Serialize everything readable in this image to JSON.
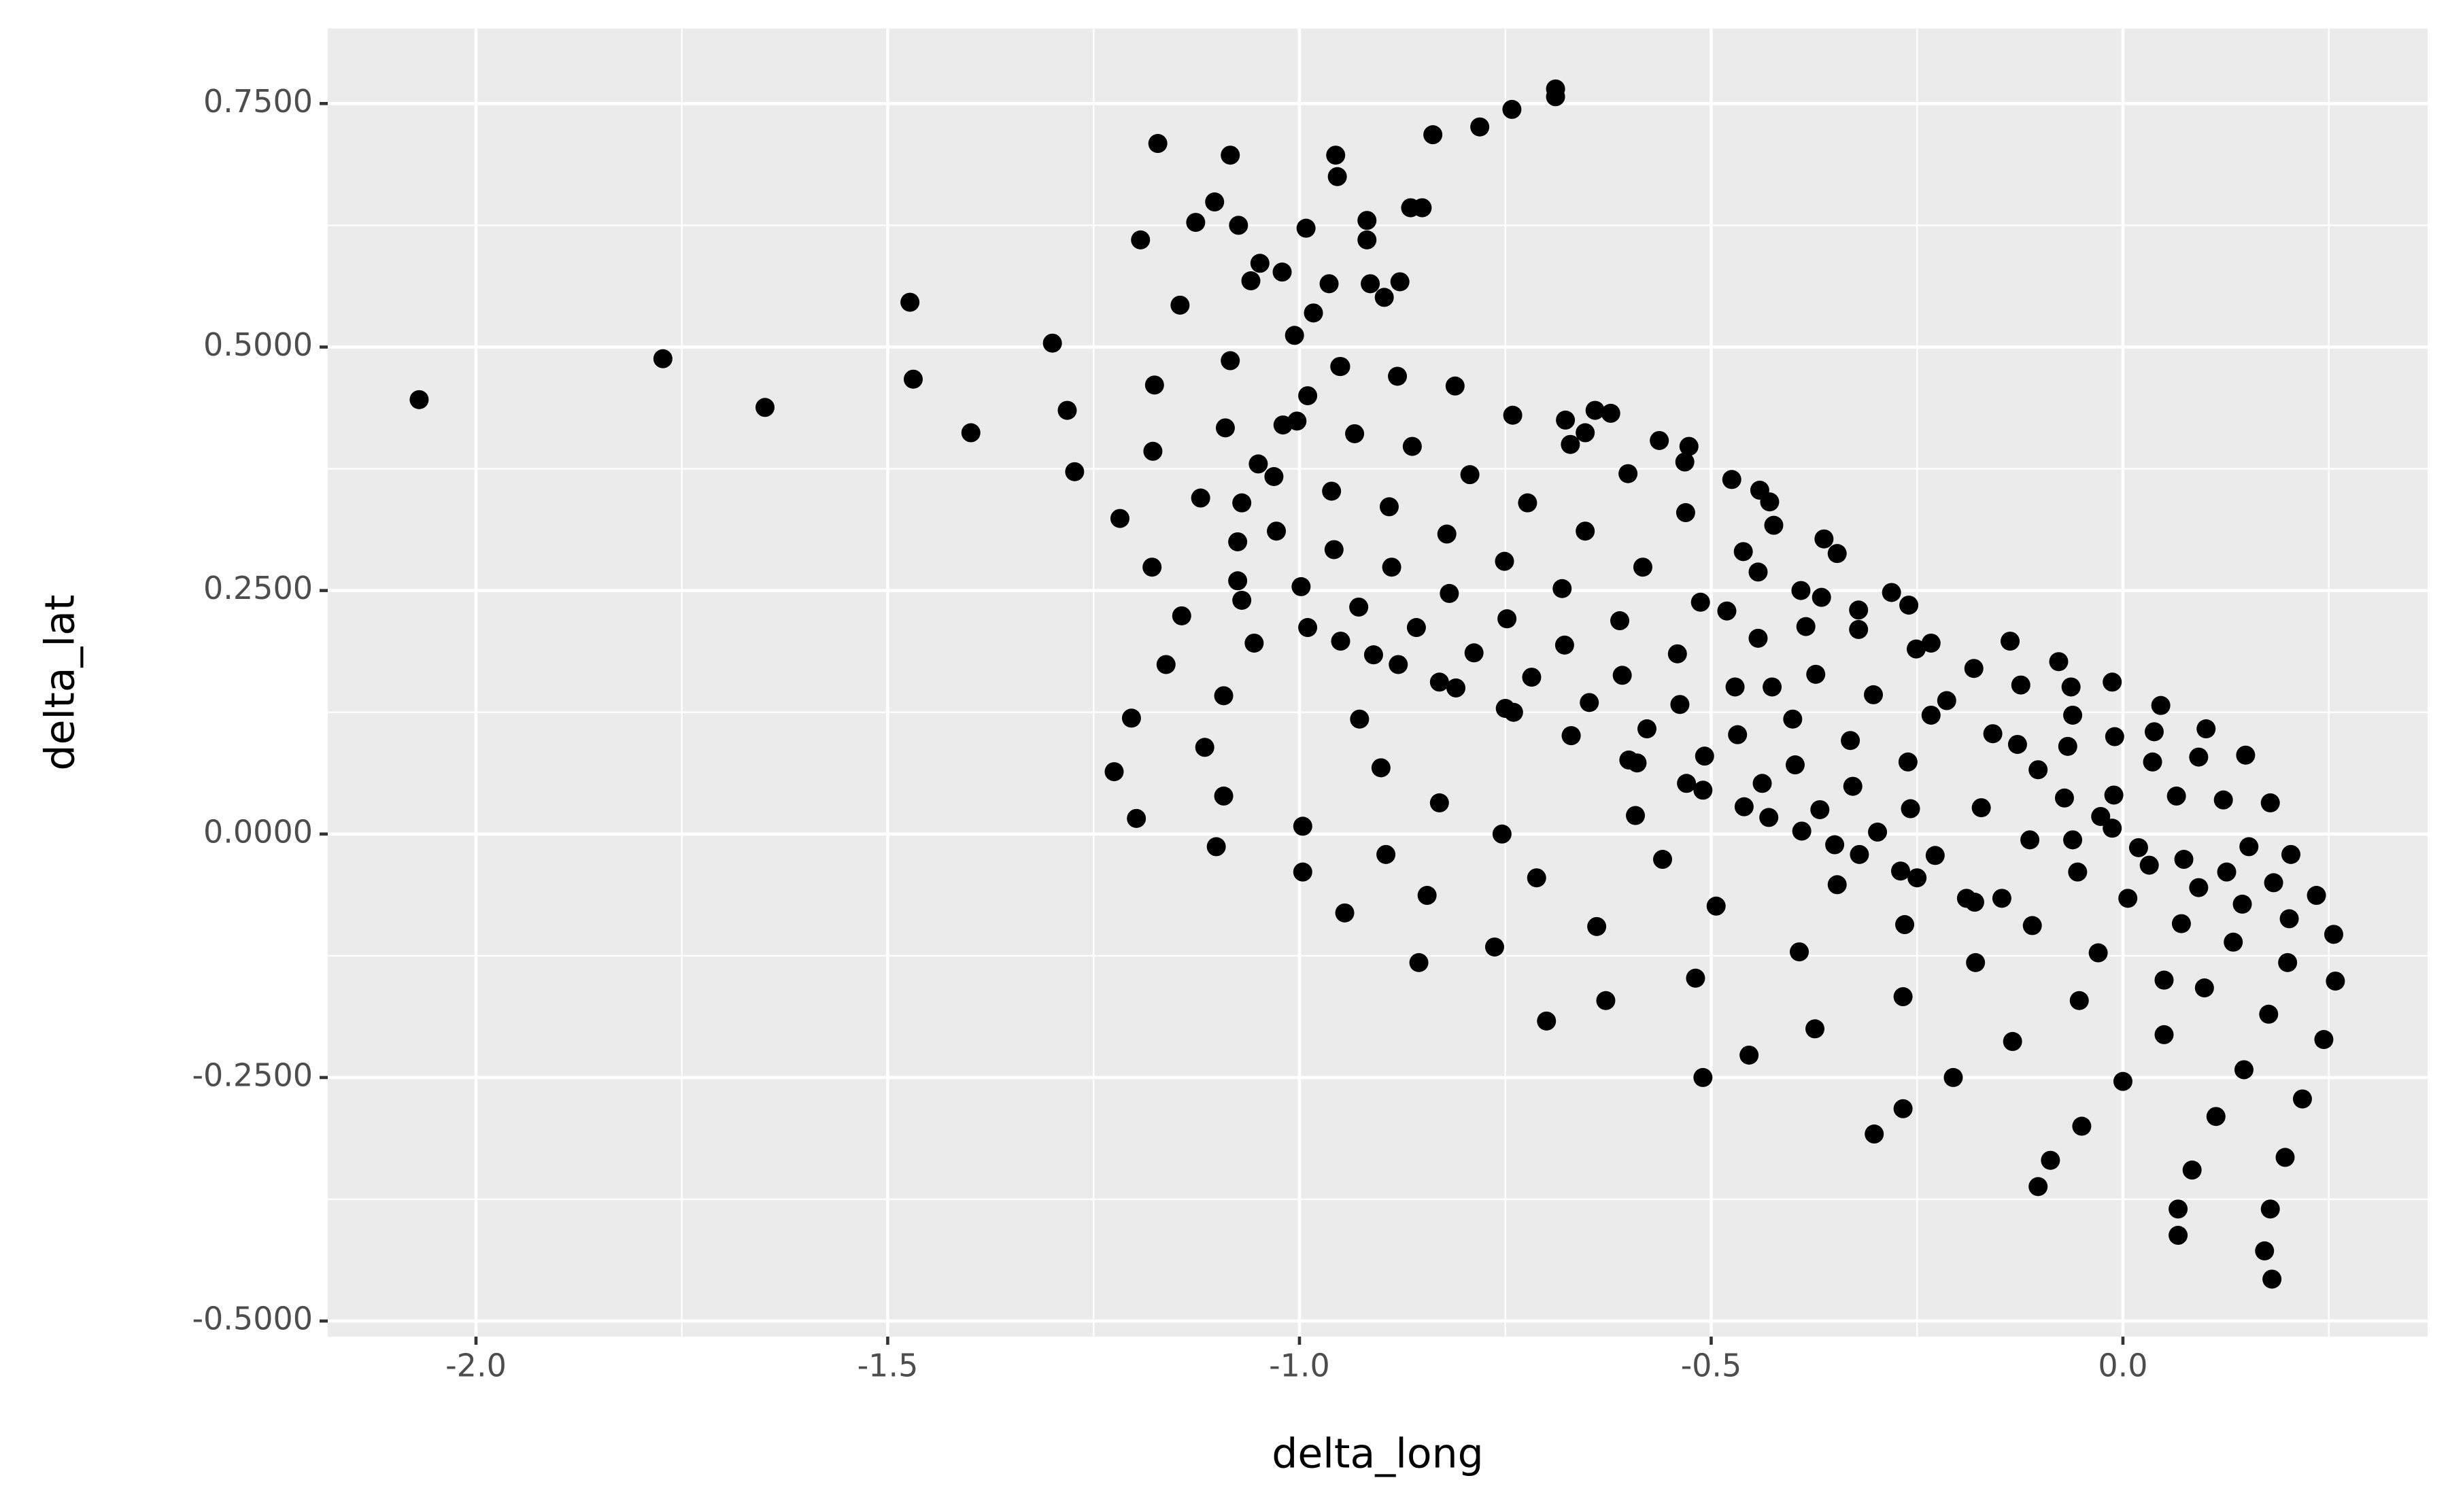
{
  "chart_data": {
    "type": "scatter",
    "x_label": "delta_long",
    "y_label": "delta_lat",
    "color": "#000000",
    "panel_color": "#ebebeb",
    "grid": true,
    "xlim": [
      -2.18,
      0.37
    ],
    "ylim": [
      -0.516,
      0.827
    ],
    "xticks": [
      {
        "value": -2,
        "label": "-2.0"
      },
      -1.5,
      {
        "value": -1,
        "label": "-1.0"
      },
      -0.5,
      {
        "value": 0,
        "label": "0.0"
      }
    ],
    "yticks": [
      {
        "value": -0.5,
        "label": "-0.5000"
      },
      {
        "value": -0.25,
        "label": "-0.2500"
      },
      {
        "value": 0,
        "label": "0.0000"
      },
      {
        "value": 0.25,
        "label": "0.2500"
      },
      {
        "value": 0.5,
        "label": "0.5000"
      },
      {
        "value": 0.75,
        "label": "0.7500"
      }
    ],
    "xminorticks": [
      -1.75,
      -1.25,
      -0.75,
      -0.25,
      0.25
    ],
    "yminorticks": [
      -0.375,
      -0.125,
      0.125,
      0.375,
      0.625
    ],
    "x": [
      -2.069,
      -1.773,
      -1.649,
      -1.473,
      -1.469,
      -1.399,
      -1.3,
      -1.282,
      -1.273,
      -1.218,
      -1.204,
      -1.225,
      -1.198,
      -1.172,
      -1.193,
      -1.176,
      -1.178,
      -1.179,
      -1.162,
      -1.145,
      -1.143,
      -1.126,
      -1.12,
      -1.115,
      -1.101,
      -1.103,
      -1.092,
      -1.092,
      -1.09,
      -1.084,
      -1.084,
      -1.074,
      -1.055,
      -1.059,
      -1.048,
      -1.021,
      -1.006,
      -0.992,
      -0.996,
      -0.996,
      -0.983,
      -0.964,
      -0.956,
      -0.954,
      -0.945,
      -0.927,
      -0.918,
      -0.918,
      -0.914,
      -0.901,
      -0.895,
      -0.897,
      -0.878,
      -0.855,
      -0.865,
      -0.851,
      -0.845,
      -0.838,
      -0.83,
      -0.781,
      -0.763,
      -0.754,
      -0.742,
      -0.712,
      -0.7,
      -0.689,
      -0.689,
      -0.639,
      -0.628,
      -0.592,
      -0.559,
      -0.519,
      -0.51,
      -0.494,
      -0.454,
      -0.393,
      -0.374,
      -0.347,
      -0.302,
      -0.267,
      -0.267,
      -0.265,
      -0.206,
      -0.179,
      -0.147,
      -0.134,
      -0.103,
      -0.088,
      -0.053,
      -0.05,
      0,
      0.05,
      0.067,
      0.067,
      0.084,
      0.099,
      0.113,
      0.134,
      0.147,
      0.172,
      0.181,
      0.179,
      0.177,
      0.197,
      0.2,
      0.218,
      0.244,
      0.258,
      0.256,
      0.235,
      0.202,
      0.183,
      0.179,
      0.204,
      0.149,
      0.153,
      0.145,
      0.126,
      0.122,
      0.101,
      0.092,
      0.092,
      0.074,
      0.071,
      0.065,
      0.046,
      0.038,
      0.036,
      0.032,
      0.019,
      0.006,
      -0.013,
      -0.01,
      -0.011,
      -0.013,
      -0.027,
      -0.061,
      -0.055,
      -0.063,
      -0.061,
      -0.067,
      -0.071,
      -0.078,
      -0.124,
      -0.128,
      -0.137,
      -0.158,
      -0.113,
      -0.103,
      -0.172,
      -0.214,
      -0.233,
      -0.26,
      -0.281,
      -0.321,
      -0.366,
      -0.363,
      -0.347,
      -0.385,
      -0.426,
      -0.443,
      -0.424,
      -0.429,
      -0.441,
      -0.475,
      -0.481,
      -0.527,
      -0.532,
      -0.563,
      -0.622,
      -0.641,
      -0.677,
      -0.653,
      -0.95,
      -0.998,
      -1.028,
      -1.031,
      -1.003,
      -0.951,
      -0.88,
      -0.928,
      -0.958,
      -0.961,
      -0.933,
      -0.881,
      -0.81,
      -0.858,
      -0.888,
      -0.891,
      -0.863,
      -0.811,
      -0.74,
      -0.788,
      -0.818,
      -0.821,
      -0.793,
      -0.741,
      -0.67,
      -0.718,
      -0.748,
      -0.751,
      -0.723,
      -0.671,
      -0.6,
      -0.648,
      -0.678,
      -0.681,
      -0.653,
      -0.601,
      -0.53,
      -0.578,
      -0.608,
      -0.611,
      -0.583,
      -0.531,
      -0.46,
      -0.508,
      -0.538,
      -0.541,
      -0.513,
      -0.461,
      -0.39,
      -0.438,
      -0.468,
      -0.471,
      -0.443,
      -0.391,
      -0.32,
      -0.368,
      -0.398,
      -0.401,
      -0.373,
      -0.321,
      -0.25,
      -0.298,
      -0.328,
      -0.331,
      -0.303,
      -0.251,
      -0.18,
      -0.228,
      -0.258,
      -0.261,
      -0.233,
      -0.181,
      -1.075,
      -1.075,
      -1.07,
      -1.05,
      -1.02,
      -0.99,
      -0.95,
      -1.07,
      -0.99,
      -0.91,
      -0.83,
      -0.75,
      -0.67,
      -0.59,
      -0.51,
      -0.43,
      -0.35,
      -0.27,
      -0.19,
      -0.11,
      -0.03,
      0.05
    ],
    "values": [
      0.446,
      0.488,
      0.438,
      0.546,
      0.467,
      0.412,
      0.504,
      0.435,
      0.372,
      0.324,
      0.119,
      0.064,
      0.016,
      0.709,
      0.61,
      0.461,
      0.393,
      0.274,
      0.174,
      0.543,
      0.224,
      0.628,
      0.345,
      0.089,
      -0.013,
      0.649,
      0.039,
      0.142,
      0.417,
      0.697,
      0.486,
      0.625,
      0.196,
      0.568,
      0.586,
      0.577,
      0.512,
      0.622,
      0.008,
      -0.039,
      0.535,
      0.565,
      0.697,
      0.675,
      -0.081,
      0.118,
      0.63,
      0.61,
      0.565,
      0.068,
      -0.021,
      0.551,
      0.567,
      -0.132,
      0.643,
      0.643,
      -0.063,
      0.718,
      0.032,
      0.726,
      -0.116,
      0,
      0.744,
      -0.045,
      -0.192,
      0.765,
      0.757,
      -0.095,
      -0.171,
      0.019,
      -0.026,
      -0.148,
      -0.25,
      -0.074,
      -0.227,
      -0.121,
      -0.2,
      -0.052,
      -0.308,
      -0.282,
      -0.167,
      -0.093,
      -0.25,
      -0.132,
      -0.066,
      -0.213,
      -0.362,
      -0.335,
      -0.171,
      -0.3,
      -0.254,
      -0.206,
      -0.385,
      -0.412,
      -0.345,
      -0.158,
      -0.29,
      -0.111,
      -0.242,
      -0.428,
      -0.457,
      -0.385,
      -0.185,
      -0.332,
      -0.132,
      -0.272,
      -0.211,
      -0.151,
      -0.103,
      -0.063,
      -0.087,
      -0.05,
      0.032,
      -0.021,
      0.081,
      -0.013,
      -0.072,
      -0.039,
      0.035,
      0.108,
      0.079,
      -0.055,
      -0.026,
      -0.092,
      0.039,
      0.132,
      0.105,
      0.074,
      -0.032,
      -0.014,
      -0.066,
      0.156,
      0.1,
      0.04,
      0.006,
      0.018,
      -0.006,
      -0.039,
      0.151,
      0.122,
      0.09,
      0.037,
      0.177,
      0.153,
      0.092,
      0.198,
      0.103,
      -0.006,
      0.066,
      0.027,
      0.137,
      0.196,
      0.235,
      0.248,
      0.23,
      0.243,
      0.303,
      0.288,
      0.213,
      0.151,
      0.269,
      0.317,
      0.341,
      0.353,
      0.364,
      0.229,
      0.398,
      0.382,
      0.404,
      0.432,
      0.435,
      0.425,
      0.412,
      0.198,
      0.254,
      0.311,
      0.367,
      0.424,
      0.48,
      0.174,
      0.233,
      0.292,
      0.352,
      0.411,
      0.47,
      0.15,
      0.212,
      0.274,
      0.336,
      0.398,
      0.46,
      0.125,
      0.186,
      0.247,
      0.308,
      0.369,
      0.43,
      0.101,
      0.161,
      0.221,
      0.28,
      0.34,
      0.4,
      0.076,
      0.135,
      0.194,
      0.252,
      0.311,
      0.37,
      0.052,
      0.108,
      0.163,
      0.219,
      0.274,
      0.33,
      0.028,
      0.08,
      0.133,
      0.185,
      0.238,
      0.29,
      0.003,
      0.052,
      0.102,
      0.151,
      0.201,
      0.25,
      -0.021,
      0.025,
      0.071,
      0.118,
      0.164,
      0.21,
      -0.045,
      0.002,
      0.049,
      0.096,
      0.143,
      0.19,
      -0.07,
      -0.022,
      0.026,
      0.074,
      0.122,
      0.17,
      0.26,
      0.3,
      0.34,
      0.38,
      0.42,
      0.45,
      0.48,
      0.24,
      0.212,
      0.184,
      0.156,
      0.129,
      0.101,
      0.073,
      0.045,
      0.017,
      -0.011,
      -0.038,
      -0.066,
      -0.094,
      -0.122,
      -0.15
    ]
  }
}
